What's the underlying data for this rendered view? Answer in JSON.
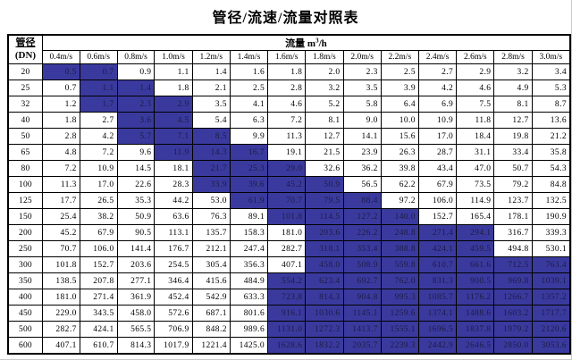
{
  "title": "管径/流速/流量对照表",
  "table": {
    "corner": {
      "line1": "管径",
      "line2": "(DN)"
    },
    "flow_header": {
      "label": "流量 m",
      "sup": "3",
      "unit": "/h"
    },
    "velocity_headers": [
      "0.4m/s",
      "0.6m/s",
      "0.8m/s",
      "1.0m/s",
      "1.2m/s",
      "1.4m/s",
      "1.6m/s",
      "1.8m/s",
      "2.0m/s",
      "2.2m/s",
      "2.4m/s",
      "2.6m/s",
      "2.8m/s",
      "3.0m/s"
    ],
    "highlight_color": "#3a3a9e",
    "rows": [
      {
        "dn": "20",
        "values": [
          "0.5",
          "0.7",
          "0.9",
          "1.1",
          "1.4",
          "1.6",
          "1.8",
          "2.0",
          "2.3",
          "2.5",
          "2.7",
          "2.9",
          "3.2",
          "3.4"
        ],
        "hl": [
          0,
          1
        ]
      },
      {
        "dn": "25",
        "values": [
          "0.7",
          "1.1",
          "1.4",
          "1.8",
          "2.1",
          "2.5",
          "2.8",
          "3.2",
          "3.5",
          "3.9",
          "4.2",
          "4.6",
          "4.9",
          "5.3"
        ],
        "hl": [
          1,
          2
        ]
      },
      {
        "dn": "32",
        "values": [
          "1.2",
          "1.7",
          "2.3",
          "2.9",
          "3.5",
          "4.1",
          "4.6",
          "5.2",
          "5.8",
          "6.4",
          "6.9",
          "7.5",
          "8.1",
          "8.7"
        ],
        "hl": [
          1,
          2,
          3
        ]
      },
      {
        "dn": "40",
        "values": [
          "1.8",
          "2.7",
          "3.6",
          "4.5",
          "5.4",
          "6.3",
          "7.2",
          "8.1",
          "9.0",
          "10.0",
          "10.9",
          "11.8",
          "12.7",
          "13.6"
        ],
        "hl": [
          2,
          3
        ]
      },
      {
        "dn": "50",
        "values": [
          "2.8",
          "4.2",
          "5.7",
          "7.1",
          "8.5",
          "9.9",
          "11.3",
          "12.7",
          "14.1",
          "15.6",
          "17.0",
          "18.4",
          "19.8",
          "21.2"
        ],
        "hl": [
          2,
          3,
          4
        ]
      },
      {
        "dn": "65",
        "values": [
          "4.8",
          "7.2",
          "9.6",
          "11.9",
          "14.3",
          "16.7",
          "19.1",
          "21.5",
          "23.9",
          "26.3",
          "28.7",
          "31.1",
          "33.4",
          "35.8"
        ],
        "hl": [
          3,
          4,
          5
        ]
      },
      {
        "dn": "80",
        "values": [
          "7.2",
          "10.9",
          "14.5",
          "18.1",
          "21.7",
          "25.3",
          "29.0",
          "32.6",
          "36.2",
          "39.8",
          "43.4",
          "47.0",
          "50.7",
          "54.3"
        ],
        "hl": [
          4,
          5,
          6
        ]
      },
      {
        "dn": "100",
        "values": [
          "11.3",
          "17.0",
          "22.6",
          "28.3",
          "33.9",
          "39.6",
          "45.2",
          "50.9",
          "56.5",
          "62.2",
          "67.9",
          "73.5",
          "79.2",
          "84.8"
        ],
        "hl": [
          4,
          5,
          6,
          7
        ]
      },
      {
        "dn": "125",
        "values": [
          "17.7",
          "26.5",
          "35.3",
          "44.2",
          "53.0",
          "61.9",
          "70.7",
          "79.5",
          "88.4",
          "97.2",
          "106.0",
          "114.9",
          "123.7",
          "132.5"
        ],
        "hl": [
          5,
          6,
          7,
          8
        ]
      },
      {
        "dn": "150",
        "values": [
          "25.4",
          "38.2",
          "50.9",
          "63.6",
          "76.3",
          "89.1",
          "101.8",
          "114.5",
          "127.2",
          "140.0",
          "152.7",
          "165.4",
          "178.1",
          "190.9"
        ],
        "hl": [
          6,
          7,
          8,
          9
        ]
      },
      {
        "dn": "200",
        "values": [
          "45.2",
          "67.9",
          "90.5",
          "113.1",
          "135.7",
          "158.3",
          "181.0",
          "203.6",
          "226.2",
          "248.8",
          "271.4",
          "294.1",
          "316.7",
          "339.3"
        ],
        "hl": [
          7,
          8,
          9,
          10,
          11
        ]
      },
      {
        "dn": "250",
        "values": [
          "70.7",
          "106.0",
          "141.4",
          "176.7",
          "212.1",
          "247.4",
          "282.7",
          "318.1",
          "353.4",
          "388.8",
          "424.1",
          "459.5",
          "494.8",
          "530.1"
        ],
        "hl": [
          7,
          8,
          9,
          10,
          11
        ]
      },
      {
        "dn": "300",
        "values": [
          "101.8",
          "152.7",
          "203.6",
          "254.5",
          "305.4",
          "356.3",
          "407.1",
          "458.0",
          "508.9",
          "559.8",
          "610.7",
          "661.6",
          "712.5",
          "763.4"
        ],
        "hl": [
          7,
          8,
          9,
          10,
          11,
          12,
          13
        ]
      },
      {
        "dn": "350",
        "values": [
          "138.5",
          "207.8",
          "277.1",
          "346.4",
          "415.6",
          "484.9",
          "554.2",
          "623.4",
          "692.7",
          "762.0",
          "831.3",
          "900.5",
          "969.8",
          "1039.1"
        ],
        "hl": [
          6,
          7,
          8,
          9,
          10,
          11,
          12,
          13
        ]
      },
      {
        "dn": "400",
        "values": [
          "181.0",
          "271.4",
          "361.9",
          "452.4",
          "542.9",
          "633.3",
          "723.8",
          "814.3",
          "904.8",
          "995.3",
          "1085.7",
          "1176.2",
          "1266.7",
          "1357.2"
        ],
        "hl": [
          6,
          7,
          8,
          9,
          10,
          11,
          12,
          13
        ]
      },
      {
        "dn": "450",
        "values": [
          "229.0",
          "343.5",
          "458.0",
          "572.6",
          "687.1",
          "801.6",
          "916.1",
          "1030.6",
          "1145.1",
          "1259.6",
          "1374.1",
          "1488.6",
          "1603.2",
          "1717.7"
        ],
        "hl": [
          6,
          7,
          8,
          9,
          10,
          11,
          12,
          13
        ]
      },
      {
        "dn": "500",
        "values": [
          "282.7",
          "424.1",
          "565.5",
          "706.9",
          "848.2",
          "989.6",
          "1131.0",
          "1272.3",
          "1413.7",
          "1555.1",
          "1696.5",
          "1837.8",
          "1979.2",
          "2120.6"
        ],
        "hl": [
          6,
          7,
          8,
          9,
          10,
          11,
          12,
          13
        ]
      },
      {
        "dn": "600",
        "values": [
          "407.1",
          "610.7",
          "814.3",
          "1017.9",
          "1221.4",
          "1425.0",
          "1628.6",
          "1832.2",
          "2035.7",
          "2239.3",
          "2442.9",
          "2646.5",
          "2850.0",
          "3053.6"
        ],
        "hl": [
          6,
          7,
          8,
          9,
          10,
          11,
          12,
          13
        ]
      }
    ]
  }
}
